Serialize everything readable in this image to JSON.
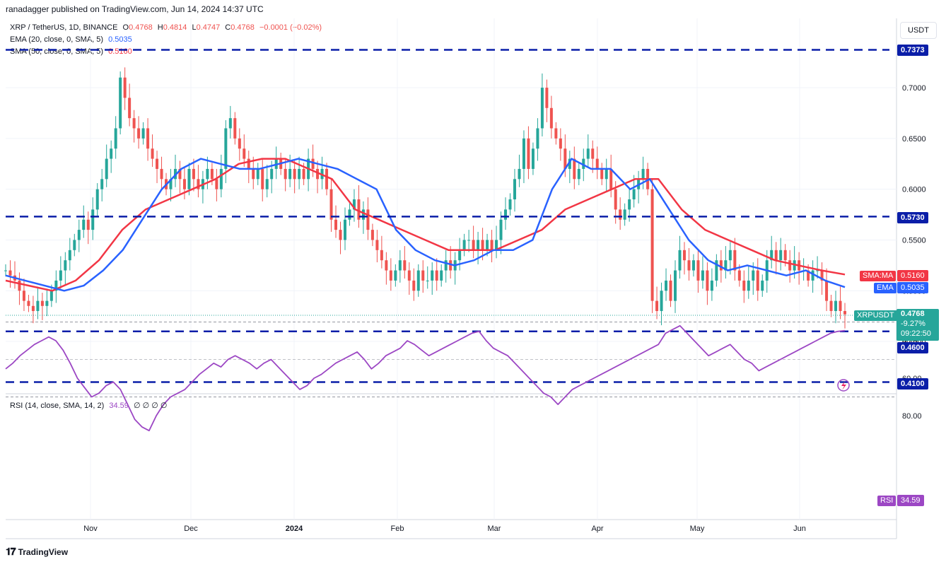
{
  "header": {
    "published": "ranadagger published on TradingView.com, Jun 14, 2024 14:37 UTC"
  },
  "legend": {
    "symbol": "XRP / TetherUS, 1D, BINANCE",
    "o_label": "O",
    "o_value": "0.4768",
    "h_label": "H",
    "h_value": "0.4814",
    "l_label": "L",
    "l_value": "0.4747",
    "c_label": "C",
    "c_value": "0.4768",
    "change": "−0.0001 (−0.02%)",
    "ema_label": "EMA (20, close, 0, SMA, 5)",
    "ema_value": "0.5035",
    "sma_label": "SMA (50, close, 0, SMA, 5)",
    "sma_value": "0.5160",
    "rsi_label": "RSI (14, close, SMA, 14, 2)",
    "rsi_value": "34.59",
    "rsi_extra": "∅ ∅ ∅ ∅"
  },
  "currency_button": "USDT",
  "price_tags": {
    "level_7373": "0.7373",
    "level_5730": "0.5730",
    "level_4600": "0.4600",
    "level_4100": "0.4100",
    "sma_tag_label": "SMA:MA",
    "sma_tag_value": "0.5160",
    "ema_tag_label": "EMA",
    "ema_tag_value": "0.5035",
    "symbol_tag_label": "XRPUSDT",
    "last_price": "0.4768",
    "last_change": "-9.27%",
    "countdown": "09:22:50",
    "rsi_tag_label": "RSI",
    "rsi_tag_value": "34.59"
  },
  "footer": {
    "brand": "TradingView"
  },
  "colors": {
    "up": "#26a69a",
    "down": "#ef5350",
    "ema": "#2962ff",
    "sma": "#f23645",
    "rsi": "#9c47c4",
    "rsi_band": "#ede7f6",
    "level_line": "#0a1ea8"
  },
  "chart_data": {
    "type": "candlestick",
    "title": "XRP / TetherUS, 1D, BINANCE",
    "x_ticks": [
      "Nov",
      "Dec",
      "2024",
      "Feb",
      "Mar",
      "Apr",
      "May",
      "Jun"
    ],
    "y_ticks": [
      "0.7000",
      "0.6500",
      "0.6000",
      "0.5500",
      "0.5000",
      "0.4500"
    ],
    "ylim": [
      0.4,
      0.75
    ],
    "horizontal_levels": [
      0.7373,
      0.573,
      0.46,
      0.41
    ],
    "close_approx": [
      0.52,
      0.515,
      0.51,
      0.5,
      0.49,
      0.485,
      0.48,
      0.49,
      0.485,
      0.49,
      0.5,
      0.51,
      0.52,
      0.53,
      0.54,
      0.55,
      0.56,
      0.57,
      0.56,
      0.58,
      0.6,
      0.61,
      0.63,
      0.64,
      0.66,
      0.71,
      0.69,
      0.67,
      0.66,
      0.65,
      0.66,
      0.64,
      0.63,
      0.62,
      0.61,
      0.6,
      0.61,
      0.62,
      0.61,
      0.6,
      0.62,
      0.61,
      0.6,
      0.61,
      0.62,
      0.61,
      0.6,
      0.62,
      0.66,
      0.67,
      0.65,
      0.64,
      0.63,
      0.62,
      0.61,
      0.62,
      0.6,
      0.61,
      0.62,
      0.63,
      0.62,
      0.61,
      0.62,
      0.61,
      0.62,
      0.61,
      0.63,
      0.62,
      0.61,
      0.62,
      0.6,
      0.57,
      0.56,
      0.55,
      0.57,
      0.58,
      0.59,
      0.57,
      0.58,
      0.56,
      0.55,
      0.54,
      0.53,
      0.52,
      0.51,
      0.52,
      0.53,
      0.52,
      0.51,
      0.5,
      0.52,
      0.51,
      0.51,
      0.52,
      0.51,
      0.52,
      0.53,
      0.52,
      0.53,
      0.54,
      0.55,
      0.55,
      0.54,
      0.55,
      0.54,
      0.55,
      0.54,
      0.55,
      0.57,
      0.58,
      0.59,
      0.61,
      0.62,
      0.65,
      0.62,
      0.64,
      0.66,
      0.7,
      0.68,
      0.66,
      0.65,
      0.64,
      0.62,
      0.63,
      0.61,
      0.62,
      0.63,
      0.64,
      0.63,
      0.62,
      0.61,
      0.62,
      0.6,
      0.58,
      0.57,
      0.58,
      0.59,
      0.6,
      0.61,
      0.62,
      0.6,
      0.49,
      0.48,
      0.5,
      0.51,
      0.49,
      0.52,
      0.54,
      0.53,
      0.52,
      0.53,
      0.51,
      0.52,
      0.5,
      0.51,
      0.53,
      0.52,
      0.53,
      0.54,
      0.52,
      0.51,
      0.5,
      0.51,
      0.52,
      0.5,
      0.51,
      0.53,
      0.54,
      0.53,
      0.54,
      0.53,
      0.52,
      0.53,
      0.52,
      0.52,
      0.51,
      0.52,
      0.52,
      0.51,
      0.49,
      0.48,
      0.49,
      0.48,
      0.4768
    ],
    "ema20_approx": [
      0.515,
      0.51,
      0.505,
      0.5,
      0.505,
      0.52,
      0.54,
      0.57,
      0.6,
      0.62,
      0.63,
      0.625,
      0.62,
      0.62,
      0.625,
      0.63,
      0.625,
      0.62,
      0.61,
      0.6,
      0.56,
      0.54,
      0.53,
      0.525,
      0.53,
      0.54,
      0.54,
      0.55,
      0.6,
      0.63,
      0.62,
      0.62,
      0.6,
      0.61,
      0.58,
      0.55,
      0.53,
      0.52,
      0.525,
      0.52,
      0.515,
      0.52,
      0.51,
      0.5035
    ],
    "sma50_approx": [
      0.51,
      0.505,
      0.5,
      0.51,
      0.53,
      0.56,
      0.58,
      0.59,
      0.6,
      0.61,
      0.625,
      0.63,
      0.63,
      0.62,
      0.61,
      0.58,
      0.57,
      0.56,
      0.55,
      0.54,
      0.54,
      0.54,
      0.55,
      0.56,
      0.58,
      0.59,
      0.6,
      0.61,
      0.61,
      0.58,
      0.56,
      0.55,
      0.54,
      0.53,
      0.525,
      0.52,
      0.516
    ],
    "rsi": {
      "ylim": [
        20,
        90
      ],
      "y_ticks": [
        "80.00",
        "60.00",
        "40.00"
      ],
      "band": [
        30,
        70
      ],
      "values_approx": [
        55,
        52,
        48,
        45,
        42,
        40,
        38,
        40,
        45,
        52,
        60,
        65,
        70,
        68,
        64,
        62,
        66,
        74,
        82,
        86,
        88,
        80,
        74,
        70,
        68,
        66,
        62,
        58,
        55,
        52,
        54,
        50,
        48,
        50,
        52,
        55,
        52,
        50,
        54,
        58,
        62,
        66,
        64,
        60,
        58,
        55,
        52,
        50,
        48,
        46,
        50,
        55,
        52,
        48,
        46,
        44,
        40,
        42,
        45,
        48,
        46,
        44,
        42,
        40,
        38,
        36,
        35,
        40,
        44,
        46,
        48,
        52,
        56,
        60,
        64,
        68,
        70,
        74,
        70,
        66,
        64,
        62,
        60,
        58,
        56,
        54,
        52,
        50,
        48,
        46,
        44,
        42,
        36,
        34,
        32,
        36,
        40,
        44,
        48,
        46,
        44,
        42,
        46,
        50,
        52,
        56,
        54,
        52,
        50,
        48,
        46,
        44,
        42,
        40,
        38,
        36,
        35,
        34.59
      ]
    }
  }
}
